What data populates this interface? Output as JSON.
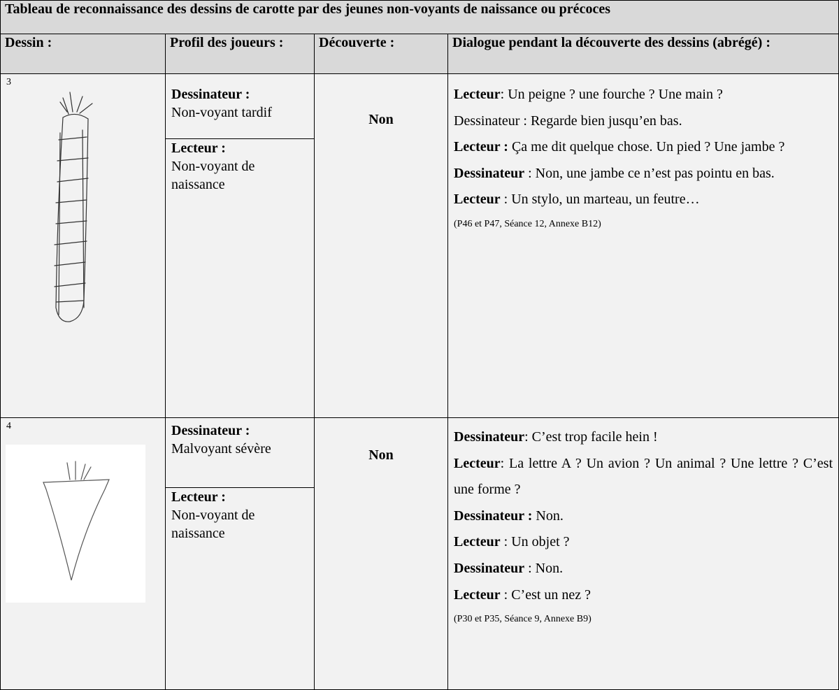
{
  "title": "Tableau de reconnaissance des dessins de carotte par des jeunes non-voyants de naissance ou précoces",
  "columns": [
    "Dessin :",
    "Profil des joueurs :",
    "Découverte :",
    "Dialogue pendant la découverte des dessins (abrégé) :"
  ],
  "rows": [
    {
      "number": "3",
      "profile": [
        {
          "role": "Dessinateur :",
          "desc": "Non-voyant tardif"
        },
        {
          "role": "Lecteur :",
          "desc": "Non-voyant de naissance"
        }
      ],
      "discovery": "Non",
      "dialogue": [
        {
          "speaker": "Lecteur",
          "text": ": Un peigne ? une fourche ? Une main ?"
        },
        {
          "text": "Dessinateur : Regarde bien jusqu’en bas."
        },
        {
          "speaker": "Lecteur :",
          "text": " Ça me dit quelque chose. Un pied ? Une jambe ?"
        },
        {
          "speaker": "Dessinateur",
          "text": " : Non, une jambe ce n’est pas pointu en bas."
        },
        {
          "speaker": "Lecteur",
          "text": " : Un stylo, un marteau, un feutre…"
        }
      ],
      "citation": "(P46 et P47, Séance 12, Annexe B12)"
    },
    {
      "number": "4",
      "profile": [
        {
          "role": "Dessinateur :",
          "desc": "Malvoyant sévère"
        },
        {
          "role": "Lecteur :",
          "desc": "Non-voyant de naissance"
        }
      ],
      "discovery": "Non",
      "dialogue": [
        {
          "speaker": "Dessinateur",
          "text": ": C’est trop facile hein !"
        },
        {
          "speaker": "Lecteur",
          "text": ": La lettre A ? Un avion ? Un animal ? Une lettre ? C’est une forme ?"
        },
        {
          "speaker": "Dessinateur :",
          "text": " Non."
        },
        {
          "speaker": "Lecteur",
          "text": " : Un objet ?"
        },
        {
          "speaker": "Dessinateur",
          "text": " : Non."
        },
        {
          "speaker": "Lecteur",
          "text": " : C’est un nez ?"
        }
      ],
      "citation": "(P30 et P35, Séance 9, Annexe B9)"
    }
  ]
}
